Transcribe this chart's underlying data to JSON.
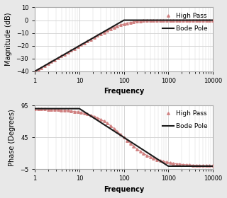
{
  "freq_range": [
    1,
    10000
  ],
  "pole_freq": 100,
  "ylim_mag": [
    -40,
    10
  ],
  "yticks_mag": [
    -40,
    -30,
    -20,
    -10,
    0,
    10
  ],
  "ylim_phase": [
    -5,
    95
  ],
  "yticks_phase": [
    -5,
    45,
    95
  ],
  "ylabel_mag": "Magnitude (dB)",
  "ylabel_phase": "Phase (Degrees)",
  "xlabel": "Frequency",
  "legend_hp": "High Pass",
  "legend_bode": "Bode Pole",
  "line_color_bode": "#1a1a1a",
  "line_color_hp": "#d08080",
  "marker_hp": "^",
  "fig_bg": "#e8e8e8",
  "ax_bg": "#ffffff",
  "grid_color": "#d0d0d0",
  "label_fontsize": 7,
  "tick_fontsize": 6,
  "legend_fontsize": 6.5,
  "n_markers": 55,
  "marker_size": 2.5,
  "bode_lw": 1.5,
  "hp_lw": 0.8
}
